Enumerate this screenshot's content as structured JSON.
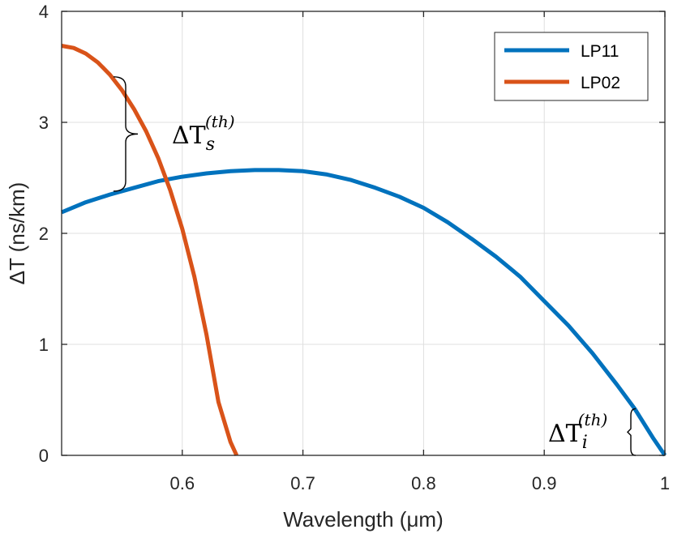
{
  "chart_data": {
    "type": "line",
    "title": "",
    "xlabel": "Wavelength (μm)",
    "ylabel": "ΔT (ns/km)",
    "xlim": [
      0.5,
      1.0
    ],
    "ylim": [
      0,
      4
    ],
    "xticks": [
      0.6,
      0.7,
      0.8,
      0.9,
      1.0
    ],
    "xtick_labels": [
      "0.6",
      "0.7",
      "0.8",
      "0.9",
      "1"
    ],
    "yticks": [
      0,
      1,
      2,
      3,
      4
    ],
    "ytick_labels": [
      "0",
      "1",
      "2",
      "3",
      "4"
    ],
    "grid": true,
    "legend_position": "top-right",
    "series": [
      {
        "name": "LP11",
        "color": "#0072BD",
        "x": [
          0.5,
          0.52,
          0.54,
          0.56,
          0.58,
          0.6,
          0.62,
          0.64,
          0.66,
          0.68,
          0.7,
          0.72,
          0.74,
          0.76,
          0.78,
          0.8,
          0.82,
          0.84,
          0.86,
          0.88,
          0.9,
          0.92,
          0.94,
          0.96,
          0.975,
          0.99,
          1.0
        ],
        "y": [
          2.19,
          2.28,
          2.35,
          2.41,
          2.47,
          2.51,
          2.54,
          2.56,
          2.57,
          2.57,
          2.56,
          2.53,
          2.48,
          2.41,
          2.33,
          2.23,
          2.1,
          1.95,
          1.79,
          1.61,
          1.39,
          1.17,
          0.92,
          0.64,
          0.42,
          0.16,
          0.0
        ]
      },
      {
        "name": "LP02",
        "color": "#D95319",
        "x": [
          0.5,
          0.51,
          0.52,
          0.53,
          0.54,
          0.55,
          0.56,
          0.57,
          0.58,
          0.59,
          0.6,
          0.61,
          0.62,
          0.63,
          0.64,
          0.645
        ],
        "y": [
          3.69,
          3.67,
          3.62,
          3.54,
          3.43,
          3.29,
          3.12,
          2.92,
          2.68,
          2.39,
          2.04,
          1.61,
          1.09,
          0.48,
          0.12,
          0.0
        ]
      }
    ],
    "annotations": [
      {
        "base": "ΔT",
        "sub": "s",
        "sup": "(th)",
        "text": "ΔT_s^(th)",
        "bracket_x": 0.57,
        "bracket_y": [
          2.38,
          3.41
        ]
      },
      {
        "base": "ΔT",
        "sub": "i",
        "sup": "(th)",
        "text": "ΔT_i^(th)",
        "bracket_x": 0.977,
        "bracket_y": [
          0.0,
          0.42
        ]
      }
    ]
  }
}
